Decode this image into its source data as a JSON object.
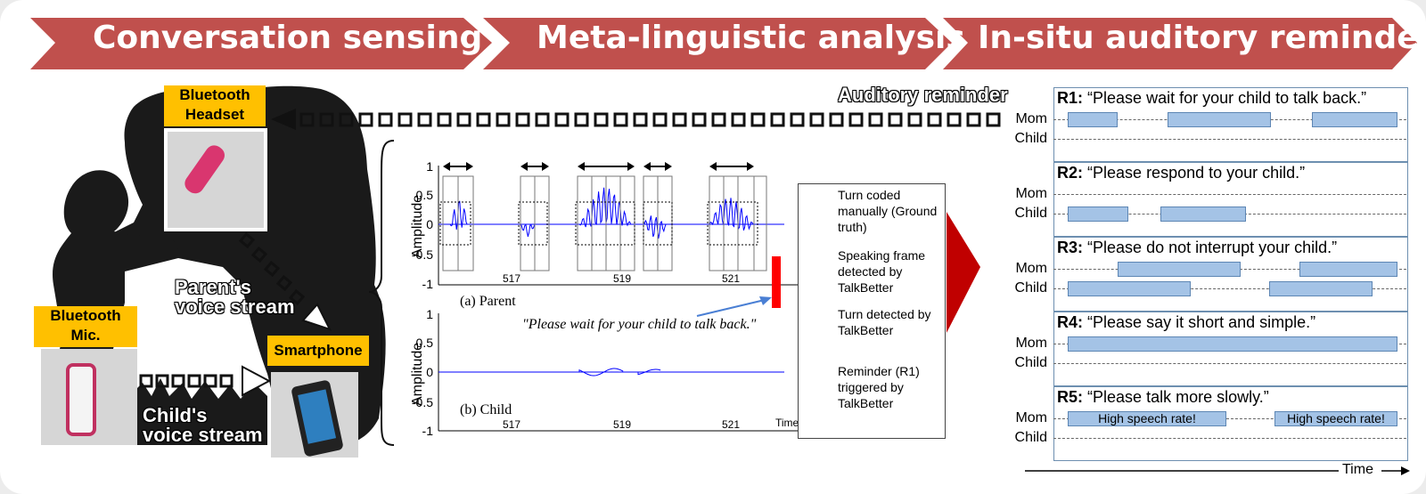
{
  "banner": {
    "stages": [
      "Conversation sensing",
      "Meta-linguistic analysis",
      "In-situ auditory reminder"
    ],
    "color": "#c0504d"
  },
  "sensing": {
    "headset_label": "Bluetooth\nHeadset",
    "mic_label": "Bluetooth\nMic.",
    "phone_label": "Smartphone",
    "parent_stream": "Parent's\nvoice stream",
    "child_stream": "Child's\nvoice stream",
    "auditory_reminder": "Auditory reminder"
  },
  "analysis": {
    "ylabel": "Amplitude",
    "parent_caption": "(a) Parent",
    "child_caption": "(b) Child",
    "yticks": [
      "1",
      "0.5",
      "0",
      "-0.5",
      "-1"
    ],
    "xticks": [
      "517",
      "519",
      "521"
    ],
    "time_label": "Time (s)",
    "reminder_quote": "\"Please wait for your child to talk back.\"",
    "legend": [
      {
        "icon": "dotted-box-icon",
        "text": "Turn coded manually (Ground truth)"
      },
      {
        "icon": "frame-box-icon",
        "text": "Speaking frame detected by TalkBetter"
      },
      {
        "icon": "double-arrow-icon",
        "text": "Turn detected by TalkBetter"
      },
      {
        "icon": "red-bar-icon",
        "text": "Reminder (R1) triggered by TalkBetter"
      }
    ],
    "reminder_color": "#ff0000",
    "wave_color": "#0000ff"
  },
  "reminders": {
    "mom_label": "Mom",
    "child_label": "Child",
    "time_label": "Time",
    "items": [
      {
        "id": "R1:",
        "text": "“Please wait for your child to talk back.”"
      },
      {
        "id": "R2:",
        "text": "“Please respond to your child.”"
      },
      {
        "id": "R3:",
        "text": "“Please do not interrupt your child.”"
      },
      {
        "id": "R4:",
        "text": "“Please say it short and simple.”"
      },
      {
        "id": "R5:",
        "text": "“Please talk more slowly.”"
      }
    ],
    "high_rate_label": "High speech rate!"
  }
}
